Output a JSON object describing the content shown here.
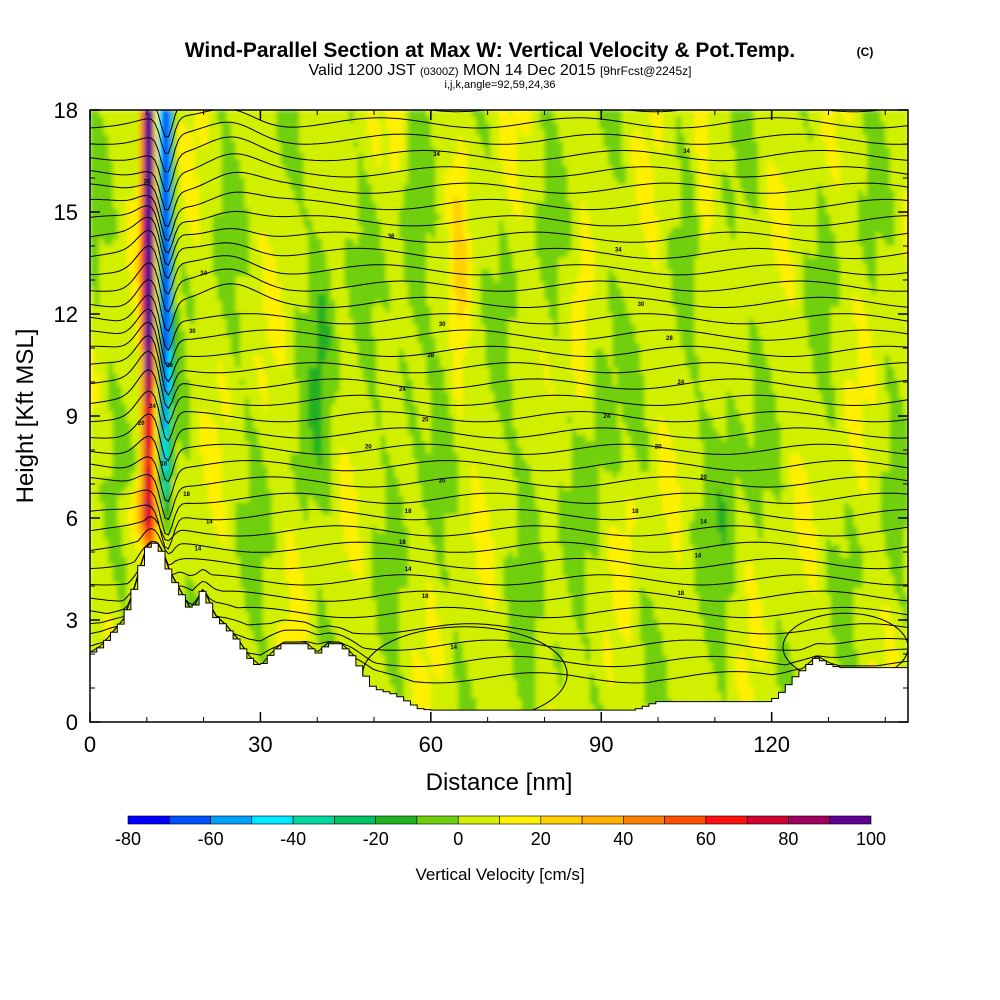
{
  "title": {
    "main": "Wind-Parallel Section at Max W: Vertical Velocity & Pot.Temp.",
    "copyright": "(C)",
    "valid_prefix": "Valid 1200 JST",
    "valid_utc": "(0300Z)",
    "valid_date": "MON 14 Dec 2015",
    "forecast": "[9hrFcst@2245z]",
    "params": "i,j,k,angle=92,59,24,36"
  },
  "chart_data": {
    "type": "heatmap",
    "xlabel": "Distance [nm]",
    "ylabel": "Height [Kft MSL]",
    "xlim": [
      0,
      144
    ],
    "ylim": [
      0,
      18
    ],
    "xticks": [
      0,
      30,
      60,
      90,
      120
    ],
    "yticks": [
      0,
      3,
      6,
      9,
      12,
      15,
      18
    ],
    "colorbar": {
      "label": "Vertical Velocity [cm/s]",
      "bounds": [
        -80,
        -70,
        -60,
        -50,
        -40,
        -30,
        -20,
        -10,
        0,
        10,
        20,
        30,
        40,
        50,
        60,
        70,
        80,
        90,
        100
      ],
      "tick_labels": [
        -80,
        -60,
        -40,
        -20,
        0,
        20,
        40,
        60,
        80,
        100
      ],
      "colors": [
        "#0000ff",
        "#0050ff",
        "#00a0ff",
        "#00e8ff",
        "#00d8a0",
        "#00c060",
        "#20b020",
        "#70d010",
        "#d0f000",
        "#fff000",
        "#ffd000",
        "#ffb000",
        "#ff8000",
        "#ff5000",
        "#ff1010",
        "#d00030",
        "#a00060",
        "#600090"
      ]
    },
    "terrain": [
      [
        0,
        2.0
      ],
      [
        2,
        2.2
      ],
      [
        4,
        2.6
      ],
      [
        6,
        3.0
      ],
      [
        8,
        4.0
      ],
      [
        9,
        4.6
      ],
      [
        10,
        5.1
      ],
      [
        11,
        5.3
      ],
      [
        12,
        5.2
      ],
      [
        13,
        4.9
      ],
      [
        14,
        4.4
      ],
      [
        15,
        4.1
      ],
      [
        16,
        3.8
      ],
      [
        17,
        3.5
      ],
      [
        18,
        3.2
      ],
      [
        19,
        3.6
      ],
      [
        20,
        3.9
      ],
      [
        21,
        3.5
      ],
      [
        22,
        3.1
      ],
      [
        24,
        2.8
      ],
      [
        26,
        2.4
      ],
      [
        28,
        1.9
      ],
      [
        30,
        1.6
      ],
      [
        32,
        2.0
      ],
      [
        34,
        2.3
      ],
      [
        36,
        2.3
      ],
      [
        38,
        2.3
      ],
      [
        40,
        2.0
      ],
      [
        42,
        2.3
      ],
      [
        44,
        2.3
      ],
      [
        46,
        2.0
      ],
      [
        48,
        1.5
      ],
      [
        50,
        1.0
      ],
      [
        52,
        0.9
      ],
      [
        54,
        0.8
      ],
      [
        56,
        0.6
      ],
      [
        58,
        0.4
      ],
      [
        60,
        0.35
      ],
      [
        64,
        0.35
      ],
      [
        70,
        0.35
      ],
      [
        80,
        0.35
      ],
      [
        90,
        0.35
      ],
      [
        96,
        0.35
      ],
      [
        100,
        0.6
      ],
      [
        110,
        0.6
      ],
      [
        120,
        0.6
      ],
      [
        122,
        0.9
      ],
      [
        124,
        1.3
      ],
      [
        126,
        1.6
      ],
      [
        128,
        1.9
      ],
      [
        130,
        1.7
      ],
      [
        132,
        1.6
      ],
      [
        136,
        1.6
      ],
      [
        140,
        1.6
      ],
      [
        144,
        1.6
      ]
    ],
    "theta_contours": [
      {
        "label": "14",
        "x": 64,
        "y": 2.2
      },
      {
        "label": "18",
        "x": 59,
        "y": 3.7
      },
      {
        "label": "18",
        "x": 104,
        "y": 3.8
      },
      {
        "label": "14",
        "x": 56,
        "y": 4.5
      },
      {
        "label": "14",
        "x": 107,
        "y": 4.9
      },
      {
        "label": "18",
        "x": 55,
        "y": 5.3
      },
      {
        "label": "14",
        "x": 108,
        "y": 5.9
      },
      {
        "label": "18",
        "x": 56,
        "y": 6.2
      },
      {
        "label": "18",
        "x": 96,
        "y": 6.2
      },
      {
        "label": "20",
        "x": 62,
        "y": 7.1
      },
      {
        "label": "20",
        "x": 108,
        "y": 7.2
      },
      {
        "label": "20",
        "x": 49,
        "y": 8.1
      },
      {
        "label": "20",
        "x": 100,
        "y": 8.1
      },
      {
        "label": "20",
        "x": 59,
        "y": 8.9
      },
      {
        "label": "24",
        "x": 91,
        "y": 9.0
      },
      {
        "label": "24",
        "x": 55,
        "y": 9.8
      },
      {
        "label": "24",
        "x": 104,
        "y": 10.0
      },
      {
        "label": "28",
        "x": 60,
        "y": 10.8
      },
      {
        "label": "28",
        "x": 102,
        "y": 11.3
      },
      {
        "label": "30",
        "x": 62,
        "y": 11.7
      },
      {
        "label": "30",
        "x": 97,
        "y": 12.3
      },
      {
        "label": "34",
        "x": 93,
        "y": 13.9
      },
      {
        "label": "36",
        "x": 53,
        "y": 14.3
      },
      {
        "label": "34",
        "x": 61,
        "y": 16.7
      },
      {
        "label": "34",
        "x": 105,
        "y": 16.8
      },
      {
        "label": "36",
        "x": 10,
        "y": 15.9
      },
      {
        "label": "34",
        "x": 20,
        "y": 13.2
      },
      {
        "label": "30",
        "x": 18,
        "y": 11.5
      },
      {
        "label": "28",
        "x": 14,
        "y": 10.5
      },
      {
        "label": "24",
        "x": 11,
        "y": 9.3
      },
      {
        "label": "20",
        "x": 9,
        "y": 8.8
      },
      {
        "label": "18",
        "x": 13,
        "y": 7.6
      },
      {
        "label": "18",
        "x": 17,
        "y": 6.7
      },
      {
        "label": "14",
        "x": 21,
        "y": 5.9
      },
      {
        "label": "14",
        "x": 19,
        "y": 5.1
      }
    ]
  }
}
